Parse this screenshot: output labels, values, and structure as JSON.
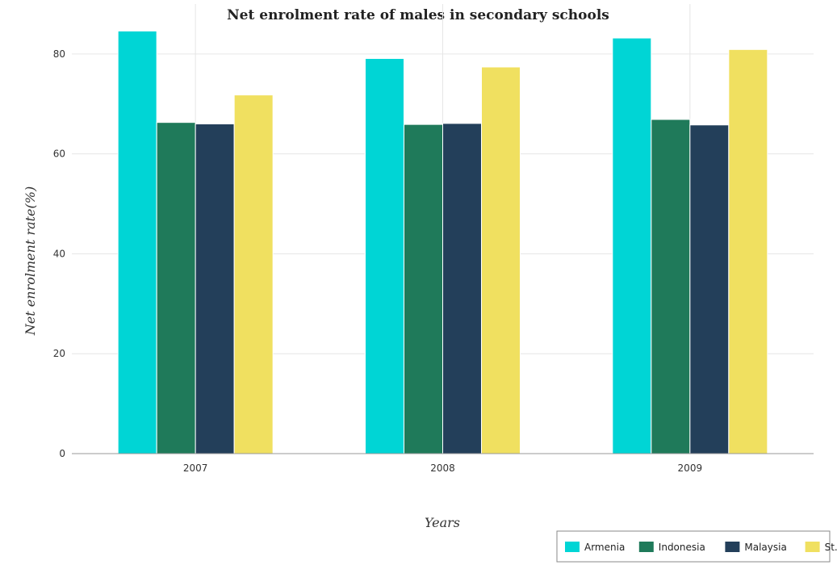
{
  "chart_data": {
    "type": "bar",
    "title": "Net enrolment rate of males in secondary schools",
    "xlabel": "Years",
    "ylabel": "Net enrolment rate(%)",
    "categories": [
      "2007",
      "2008",
      "2009"
    ],
    "ylim": [
      0,
      90
    ],
    "yticks": [
      0,
      20,
      40,
      60,
      80
    ],
    "grid": true,
    "legend_position": "bottom-right",
    "series": [
      {
        "name": "Armenia",
        "color": "#00d5d5",
        "values": [
          84.6,
          79.1,
          83.2
        ]
      },
      {
        "name": "Indonesia",
        "color": "#1f7a5a",
        "values": [
          66.3,
          65.9,
          66.9
        ]
      },
      {
        "name": "Malaysia",
        "color": "#233f5a",
        "values": [
          66.0,
          66.1,
          65.8
        ]
      },
      {
        "name": "St. Lucia",
        "color": "#f0e060",
        "values": [
          71.8,
          77.4,
          80.9
        ]
      }
    ]
  }
}
